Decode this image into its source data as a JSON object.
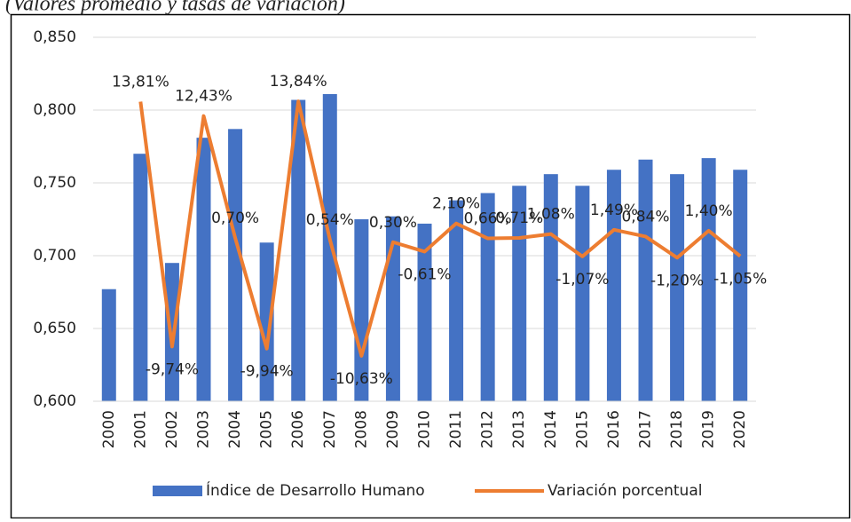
{
  "chart_data": {
    "type": "bar-line",
    "title": "(Valores promedio y tasas de variación)",
    "categories": [
      "2000",
      "2001",
      "2002",
      "2003",
      "2004",
      "2005",
      "2006",
      "2007",
      "2008",
      "2009",
      "2010",
      "2011",
      "2012",
      "2013",
      "2014",
      "2015",
      "2016",
      "2017",
      "2018",
      "2019",
      "2020"
    ],
    "series": [
      {
        "name": "Índice de Desarrollo Humano",
        "type": "bar",
        "color": "#4472c4",
        "values": [
          0.677,
          0.77,
          0.695,
          0.781,
          0.787,
          0.709,
          0.807,
          0.811,
          0.725,
          0.727,
          0.722,
          0.738,
          0.743,
          0.748,
          0.756,
          0.748,
          0.759,
          0.766,
          0.756,
          0.767,
          0.759
        ]
      },
      {
        "name": "Variación porcentual",
        "type": "line",
        "color": "#ed7d31",
        "axis": "y2",
        "values": [
          null,
          13.81,
          -9.74,
          12.43,
          0.7,
          -9.94,
          13.84,
          0.54,
          -10.63,
          0.3,
          -0.61,
          2.1,
          0.66,
          0.71,
          1.08,
          -1.07,
          1.49,
          0.84,
          -1.2,
          1.4,
          -1.05
        ],
        "value_labels": [
          null,
          "13,81%",
          "-9,74%",
          "12,43%",
          "0,70%",
          "-9,94%",
          "13,84%",
          "0,54%",
          "-10,63%",
          "0,30%",
          "-0,61%",
          "2,10%",
          "0,66%",
          "0,71%",
          "1,08%",
          "-1,07%",
          "1,49%",
          "0,84%",
          "-1,20%",
          "1,40%",
          "-1,05%"
        ]
      }
    ],
    "ylim": [
      0.6,
      0.85
    ],
    "yticks": [
      {
        "value": 0.6,
        "label": "0,600"
      },
      {
        "value": 0.65,
        "label": "0,650"
      },
      {
        "value": 0.7,
        "label": "0,700"
      },
      {
        "value": 0.75,
        "label": "0,750"
      },
      {
        "value": 0.8,
        "label": "0,800"
      },
      {
        "value": 0.85,
        "label": "0,850"
      }
    ],
    "y2lim": [
      -15,
      20
    ],
    "grid": true,
    "legend": "bottom"
  }
}
